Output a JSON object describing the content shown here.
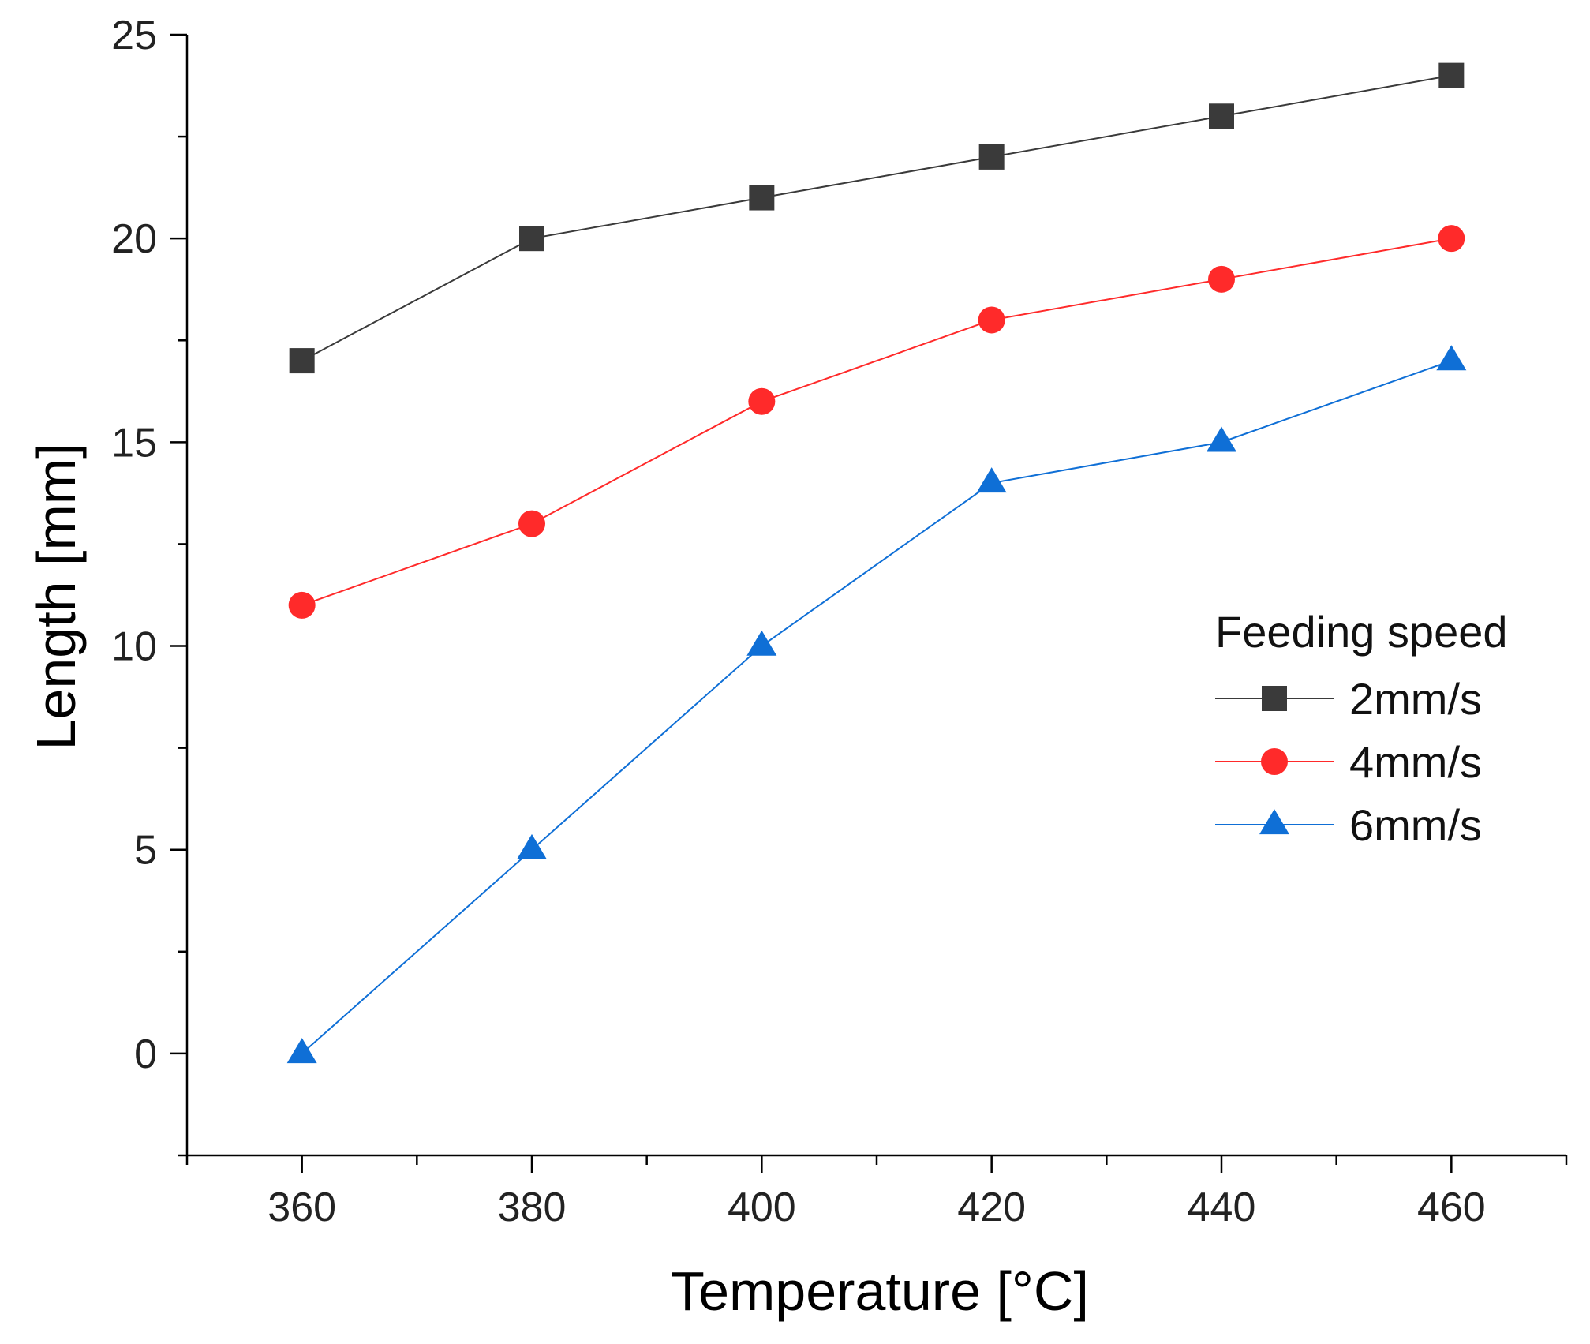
{
  "chart_data": {
    "type": "line",
    "title": "",
    "xlabel": "Temperature [°C]",
    "ylabel": "Length [mm]",
    "x": [
      360,
      380,
      400,
      420,
      440,
      460
    ],
    "xlim": [
      350,
      470
    ],
    "ylim": [
      -2.5,
      25
    ],
    "xticks": [
      360,
      380,
      400,
      420,
      440,
      460
    ],
    "yticks": [
      0,
      5,
      10,
      15,
      20,
      25
    ],
    "xtick_labels": [
      "360",
      "380",
      "400",
      "420",
      "440",
      "460"
    ],
    "ytick_labels": [
      "0",
      "5",
      "10",
      "15",
      "20",
      "25"
    ],
    "grid": false,
    "legend": {
      "title": "Feeding speed",
      "position": "right"
    },
    "series": [
      {
        "name": "2mm/s",
        "values": [
          17,
          20,
          21,
          22,
          23,
          24
        ],
        "color": "#3a3a3a",
        "marker": "square"
      },
      {
        "name": "4mm/s",
        "values": [
          11,
          13,
          16,
          18,
          19,
          20
        ],
        "color": "#ff2a2a",
        "marker": "circle"
      },
      {
        "name": "6mm/s",
        "values": [
          0,
          5,
          10,
          14,
          15,
          17
        ],
        "color": "#0f6fd6",
        "marker": "triangle"
      }
    ]
  }
}
